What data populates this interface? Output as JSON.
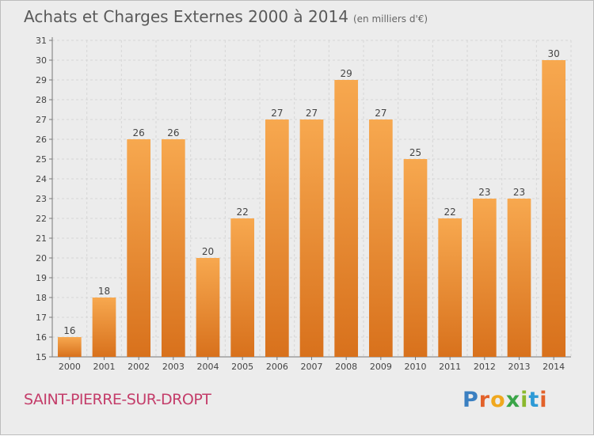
{
  "header": {
    "title": "Achats et Charges Externes 2000 à 2014",
    "subtitle": "(en milliers d'€)"
  },
  "footer": {
    "place_name": "SAINT-PIERRE-SUR-DROPT",
    "brand_letters": [
      "P",
      "r",
      "o",
      "x",
      "i",
      "t",
      "i"
    ],
    "brand_colors": [
      "#3a7fc1",
      "#e2612a",
      "#f0a81e",
      "#3aa548",
      "#8bb82d",
      "#2d9ad6",
      "#e2612a"
    ]
  },
  "chart_data": {
    "type": "bar",
    "categories": [
      "2000",
      "2001",
      "2002",
      "2003",
      "2004",
      "2005",
      "2006",
      "2007",
      "2008",
      "2009",
      "2010",
      "2011",
      "2012",
      "2013",
      "2014"
    ],
    "values": [
      16,
      18,
      26,
      26,
      20,
      22,
      27,
      27,
      29,
      27,
      25,
      22,
      23,
      23,
      30
    ],
    "ylim": [
      15,
      31
    ],
    "yticks": [
      15,
      16,
      17,
      18,
      19,
      20,
      21,
      22,
      23,
      24,
      25,
      26,
      27,
      28,
      29,
      30,
      31
    ],
    "grid": true,
    "bar_color_top": "#f7a84f",
    "bar_color_bottom": "#d8711c"
  }
}
